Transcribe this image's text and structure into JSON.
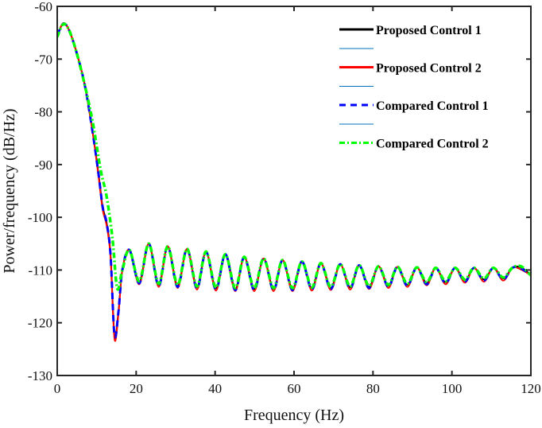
{
  "chart_data": {
    "type": "line",
    "title": "",
    "xlabel": "Frequency (Hz)",
    "ylabel": "Power/frequency (dB/Hz)",
    "xlim": [
      0,
      120
    ],
    "ylim": [
      -130,
      -60
    ],
    "xticks": [
      0,
      20,
      40,
      60,
      80,
      100,
      120
    ],
    "yticks": [
      -60,
      -70,
      -80,
      -90,
      -100,
      -110,
      -120,
      -130
    ],
    "grid": false,
    "legend_placement": "top-right",
    "ripple": [
      [
        18.3,
        -106.2
      ],
      [
        20.8,
        -112.3
      ],
      [
        23.2,
        -105.0
      ],
      [
        25.7,
        -112.8
      ],
      [
        28.0,
        -105.5
      ],
      [
        30.5,
        -113.0
      ],
      [
        32.9,
        -106.0
      ],
      [
        35.4,
        -113.3
      ],
      [
        37.7,
        -106.5
      ],
      [
        40.2,
        -113.5
      ],
      [
        42.6,
        -107.0
      ],
      [
        45.1,
        -113.6
      ],
      [
        47.4,
        -107.5
      ],
      [
        49.9,
        -113.6
      ],
      [
        52.3,
        -107.8
      ],
      [
        54.8,
        -113.6
      ],
      [
        57.1,
        -108.1
      ],
      [
        59.6,
        -113.6
      ],
      [
        62.0,
        -108.4
      ],
      [
        64.5,
        -113.5
      ],
      [
        66.8,
        -108.7
      ],
      [
        69.3,
        -113.4
      ],
      [
        71.7,
        -108.9
      ],
      [
        74.2,
        -113.3
      ],
      [
        76.5,
        -109.1
      ],
      [
        79.0,
        -113.2
      ],
      [
        81.4,
        -109.3
      ],
      [
        83.9,
        -113.0
      ],
      [
        86.2,
        -109.4
      ],
      [
        88.7,
        -112.8
      ],
      [
        91.1,
        -109.5
      ],
      [
        93.6,
        -112.5
      ],
      [
        95.9,
        -109.6
      ],
      [
        98.4,
        -112.3
      ],
      [
        100.8,
        -109.6
      ],
      [
        103.3,
        -112.0
      ],
      [
        105.6,
        -109.6
      ],
      [
        108.1,
        -111.8
      ],
      [
        110.5,
        -109.6
      ],
      [
        113.0,
        -111.6
      ],
      [
        115.3,
        -109.6
      ],
      [
        117.5,
        -109.5
      ],
      [
        120.0,
        -111.0
      ]
    ],
    "series": [
      {
        "name": "Proposed Control 1",
        "color": "#000000",
        "dash": "",
        "trough_offset": 0,
        "points": [
          [
            0,
            -65.5
          ],
          [
            1.5,
            -63.3
          ],
          [
            3,
            -64.5
          ],
          [
            5,
            -69
          ],
          [
            7,
            -75
          ],
          [
            9,
            -84
          ],
          [
            10.5,
            -92
          ],
          [
            11.5,
            -98
          ],
          [
            12.5,
            -101
          ],
          [
            13.5,
            -107
          ],
          [
            14.5,
            -122.5
          ],
          [
            15.5,
            -118
          ],
          [
            16.5,
            -110
          ]
        ]
      },
      {
        "name": "Proposed Control 2",
        "color": "#ff0000",
        "dash": "",
        "trough_offset": -0.4,
        "points": [
          [
            0,
            -65.5
          ],
          [
            1.5,
            -63.2
          ],
          [
            3,
            -64.5
          ],
          [
            5,
            -69
          ],
          [
            7,
            -75
          ],
          [
            9,
            -84
          ],
          [
            10.5,
            -92.5
          ],
          [
            11.5,
            -98.5
          ],
          [
            12.5,
            -101.5
          ],
          [
            13.5,
            -107.5
          ],
          [
            14.5,
            -123
          ],
          [
            15.5,
            -118.5
          ],
          [
            16.5,
            -110
          ]
        ]
      },
      {
        "name": "Compared Control 1",
        "color": "#0000ff",
        "dash": "8,6",
        "trough_offset": -0.2,
        "points": [
          [
            0,
            -65.5
          ],
          [
            1.5,
            -63.3
          ],
          [
            3,
            -64.5
          ],
          [
            5,
            -69
          ],
          [
            7,
            -75
          ],
          [
            9,
            -84
          ],
          [
            10.5,
            -92
          ],
          [
            11.5,
            -98
          ],
          [
            12.5,
            -101
          ],
          [
            13.5,
            -107
          ],
          [
            14.5,
            -122.3
          ],
          [
            15.5,
            -118
          ],
          [
            16.5,
            -110
          ]
        ]
      },
      {
        "name": "Compared Control 2",
        "color": "#00ff00",
        "dash": "7,3,2,3",
        "trough_offset": 0.2,
        "points": [
          [
            0,
            -65.8
          ],
          [
            1.5,
            -63.4
          ],
          [
            3,
            -64.5
          ],
          [
            5,
            -69
          ],
          [
            7,
            -75
          ],
          [
            9,
            -82
          ],
          [
            11,
            -91
          ],
          [
            12.5,
            -96
          ],
          [
            14,
            -104
          ],
          [
            15.2,
            -113.5
          ],
          [
            16.5,
            -110
          ]
        ]
      }
    ],
    "legend_spacer_color": "#0072bd"
  }
}
